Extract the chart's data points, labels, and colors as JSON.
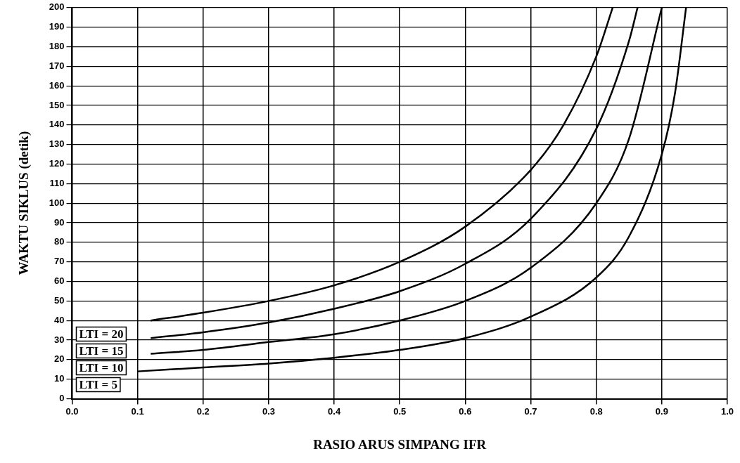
{
  "chart_data": {
    "type": "line",
    "xlabel": "RASIO ARUS SIMPANG IFR",
    "ylabel": "WAKTU SIKLUS (detik)",
    "xlim": [
      0,
      1
    ],
    "xticks": [
      {
        "value": 0,
        "label": "0.0"
      },
      {
        "value": 0.1,
        "label": "0.1"
      },
      {
        "value": 0.2,
        "label": "0.2"
      },
      {
        "value": 0.3,
        "label": "0.3"
      },
      {
        "value": 0.4,
        "label": "0.4"
      },
      {
        "value": 0.5,
        "label": "0.5"
      },
      {
        "value": 0.6,
        "label": "0.6"
      },
      {
        "value": 0.7,
        "label": "0.7"
      },
      {
        "value": 0.8,
        "label": "0.8"
      },
      {
        "value": 0.9,
        "label": "0.9"
      },
      {
        "value": 1,
        "label": "1.0"
      }
    ],
    "ylim": [
      0,
      200
    ],
    "yticks": [
      0,
      10,
      20,
      30,
      40,
      50,
      60,
      70,
      80,
      90,
      100,
      110,
      120,
      130,
      140,
      150,
      160,
      170,
      180,
      190,
      200
    ],
    "grid": true,
    "legend": "bottom left",
    "marker": "none",
    "line_style": "solid",
    "series": [
      {
        "name": "LTI = 20",
        "color": "#000000",
        "x": [
          0.12,
          0.2,
          0.3,
          0.4,
          0.5,
          0.6,
          0.7,
          0.75,
          0.8,
          0.825
        ],
        "values": [
          40,
          44,
          50,
          58,
          70,
          88,
          117,
          140,
          175,
          200
        ]
      },
      {
        "name": "LTI = 15",
        "color": "#000000",
        "x": [
          0.12,
          0.2,
          0.3,
          0.4,
          0.5,
          0.6,
          0.7,
          0.8,
          0.85,
          0.863
        ],
        "values": [
          31,
          34,
          39,
          46,
          55,
          69,
          92,
          138,
          183,
          200
        ]
      },
      {
        "name": "LTI = 10",
        "color": "#000000",
        "x": [
          0.12,
          0.2,
          0.3,
          0.4,
          0.5,
          0.6,
          0.7,
          0.8,
          0.85,
          0.9
        ],
        "values": [
          23,
          25,
          29,
          33,
          40,
          50,
          67,
          100,
          133,
          200
        ]
      },
      {
        "name": "LTI = 5",
        "color": "#000000",
        "x": [
          0.1,
          0.2,
          0.3,
          0.4,
          0.5,
          0.6,
          0.7,
          0.8,
          0.85,
          0.9,
          0.92,
          0.937
        ],
        "values": [
          14,
          16,
          18,
          21,
          25,
          31,
          42,
          62,
          83,
          125,
          156,
          200
        ]
      }
    ]
  }
}
